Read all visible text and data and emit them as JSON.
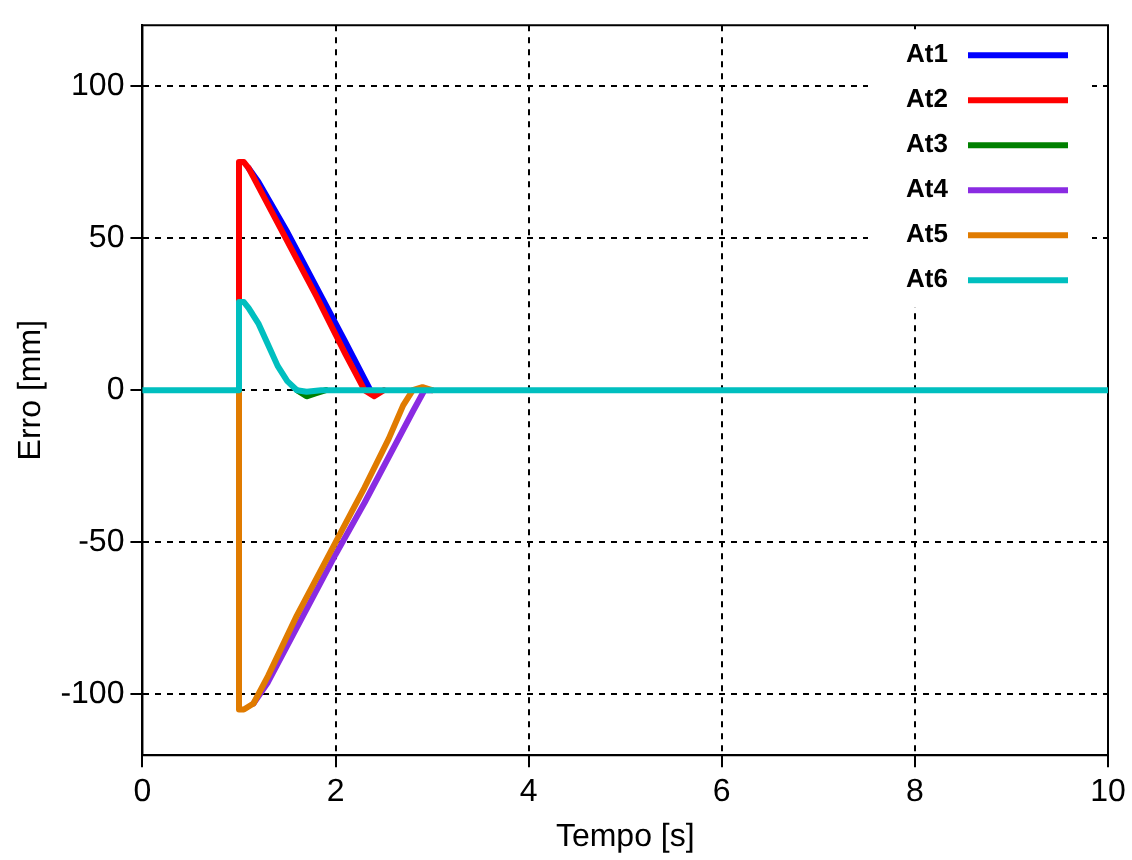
{
  "chart_data": {
    "type": "line",
    "xlabel": "Tempo [s]",
    "ylabel": "Erro [mm]",
    "xlim": [
      0,
      10
    ],
    "ylim": [
      -120,
      120
    ],
    "xticks": [
      0,
      2,
      4,
      6,
      8,
      10
    ],
    "yticks": [
      -100,
      -50,
      0,
      50,
      100
    ],
    "grid": true,
    "legend": "top right",
    "marker": "none",
    "line_style": "solid",
    "series": [
      {
        "name": "At1",
        "color": "#0000ff",
        "x": [
          1.1,
          1.2,
          1.5,
          1.8,
          2.1,
          2.36
        ],
        "values": [
          73,
          68.5,
          52,
          34,
          16,
          0
        ]
      },
      {
        "name": "At2",
        "color": "#ff0000",
        "x": [
          1.0,
          1.0,
          1.05,
          1.1,
          1.2,
          1.5,
          1.8,
          2.1,
          2.3,
          2.4,
          2.5
        ],
        "values": [
          28,
          75,
          75,
          73,
          67,
          49,
          31,
          12,
          0,
          -2,
          0
        ]
      },
      {
        "name": "At3",
        "color": "#008000",
        "x": [
          1.6,
          1.7,
          1.8,
          1.9
        ],
        "values": [
          0,
          -2,
          -1,
          0
        ]
      },
      {
        "name": "At4",
        "color": "#8a2be2",
        "x": [
          1.15,
          1.3,
          1.6,
          2.0,
          2.3,
          2.6,
          2.8,
          2.92,
          3.0
        ],
        "values": [
          -103,
          -96,
          -78,
          -54,
          -37,
          -19,
          -7,
          0,
          0
        ]
      },
      {
        "name": "At5",
        "color": "#e07b00",
        "x": [
          1.0,
          1.0,
          1.05,
          1.15,
          1.3,
          1.6,
          2.0,
          2.3,
          2.55,
          2.7,
          2.8,
          2.9,
          3.0
        ],
        "values": [
          0,
          -105,
          -105,
          -103,
          -94,
          -74,
          -50,
          -32,
          -16,
          -5,
          0,
          1,
          0
        ]
      },
      {
        "name": "At6",
        "color": "#00bfbf",
        "x": [
          0,
          0.99,
          1.0,
          1.05,
          1.1,
          1.2,
          1.3,
          1.4,
          1.5,
          1.6,
          1.7,
          1.85,
          2.0,
          10
        ],
        "values": [
          0,
          0,
          29,
          29,
          27,
          22,
          15,
          8,
          3,
          0,
          -0.5,
          0,
          0,
          0
        ]
      }
    ]
  }
}
